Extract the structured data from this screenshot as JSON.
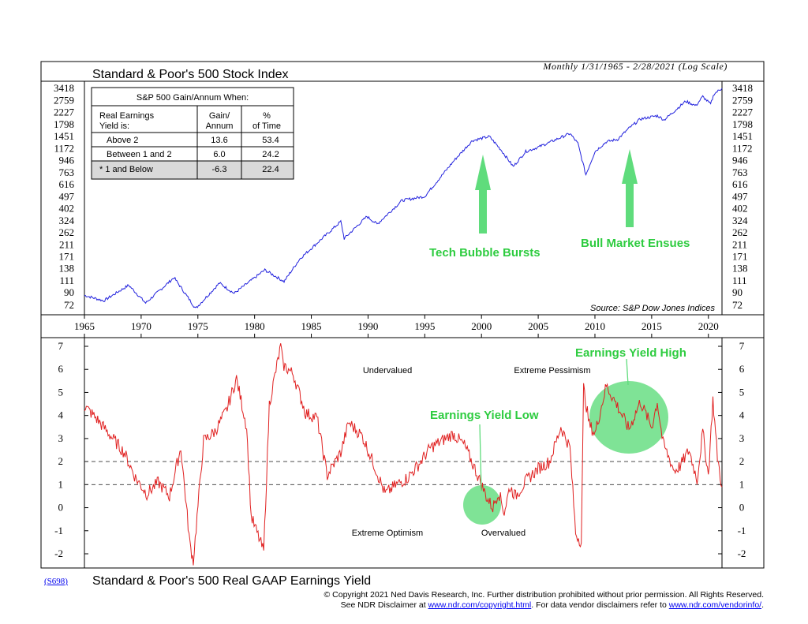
{
  "top_panel": {
    "title": "Standard & Poor's 500 Stock Index",
    "subtitle": "Monthly 1/31/1965 - 2/28/2021 (Log Scale)",
    "source": "Source: S&P Dow Jones Indices",
    "y_ticks": [
      "3418",
      "2759",
      "2227",
      "1798",
      "1451",
      "1172",
      "946",
      "763",
      "616",
      "497",
      "402",
      "324",
      "262",
      "211",
      "171",
      "138",
      "111",
      "90",
      "72"
    ],
    "annotation_1": "Tech Bubble Bursts",
    "annotation_2": "Bull Market Ensues"
  },
  "table": {
    "title": "S&P 500 Gain/Annum When:",
    "col1_header_l1": "Real Earnings",
    "col1_header_l2": "Yield is:",
    "col2_header_l1": "Gain/",
    "col2_header_l2": "Annum",
    "col3_header_l1": "%",
    "col3_header_l2": "of Time",
    "rows": [
      {
        "label": "Above 2",
        "gain": "13.6",
        "pct": "53.4"
      },
      {
        "label": "Between 1 and 2",
        "gain": "6.0",
        "pct": "24.2"
      },
      {
        "label": "* 1 and Below",
        "gain": "-6.3",
        "pct": "22.4"
      }
    ]
  },
  "x_ticks": [
    "1965",
    "1970",
    "1975",
    "1980",
    "1985",
    "1990",
    "1995",
    "2000",
    "2005",
    "2010",
    "2015",
    "2020"
  ],
  "bottom_panel": {
    "title": "Standard & Poor's 500 Real GAAP Earnings Yield",
    "y_ticks": [
      "7",
      "6",
      "5",
      "4",
      "3",
      "2",
      "1",
      "0",
      "-1",
      "-2"
    ],
    "label_undervalued": "Undervalued",
    "label_extreme_pessimism": "Extreme Pessimism",
    "label_extreme_optimism": "Extreme Optimism",
    "label_overvalued": "Overvalued",
    "annotation_low": "Earnings Yield Low",
    "annotation_high": "Earnings Yield High"
  },
  "code": "(S698)",
  "footer": {
    "line1": "© Copyright 2021 Ned Davis Research, Inc.  Further distribution prohibited without prior permission.  All Rights Reserved.",
    "line2_a": "See NDR Disclaimer at ",
    "link1": "www.ndr.com/copyright.html",
    "line2_b": ". For data vendor disclaimers refer to ",
    "link2": "www.ndr.com/vendorinfo/",
    "line2_c": "."
  },
  "colors": {
    "sp500_line": "#2222dd",
    "yield_line": "#e02020",
    "annotation": "#2ecc40",
    "highlight": "#5fdc7c"
  },
  "chart_data": [
    {
      "type": "line",
      "title": "Standard & Poor's 500 Stock Index",
      "subtitle": "Monthly 1/31/1965 - 2/28/2021 (Log Scale)",
      "y_scale": "log",
      "ylim": [
        72,
        3418
      ],
      "xlim": [
        1965,
        2021.2
      ],
      "series": [
        {
          "color": "#2222dd",
          "x": [
            1965.0,
            1966.7,
            1968.9,
            1970.4,
            1972.9,
            1974.8,
            1976.9,
            1978.2,
            1980.9,
            1982.6,
            1984.0,
            1987.6,
            1987.9,
            1989.9,
            1990.8,
            1993.0,
            1995.0,
            1997.6,
            1999.2,
            2000.7,
            2001.7,
            2002.8,
            2003.9,
            2005.0,
            2007.8,
            2008.5,
            2009.2,
            2010.0,
            2011.0,
            2012.0,
            2013.0,
            2014.0,
            2015.5,
            2016.1,
            2017.0,
            2018.0,
            2018.9,
            2019.5,
            2020.2,
            2020.5,
            2021.2
          ],
          "values": [
            86,
            78,
            103,
            75,
            118,
            68,
            107,
            89,
            135,
            110,
            165,
            320,
            236,
            350,
            305,
            465,
            500,
            950,
            1350,
            1450,
            1150,
            850,
            1111,
            1200,
            1530,
            1280,
            735,
            1110,
            1320,
            1380,
            1680,
            1980,
            2100,
            1950,
            2280,
            2720,
            2510,
            2950,
            2580,
            3100,
            3420
          ]
        }
      ]
    },
    {
      "type": "line",
      "title": "Standard & Poor's 500 Real GAAP Earnings Yield",
      "ylim": [
        -2,
        7
      ],
      "xlim": [
        1965,
        2021.2
      ],
      "reference_lines": [
        2,
        1
      ],
      "series": [
        {
          "color": "#e02020",
          "x": [
            1965.0,
            1966.0,
            1967.0,
            1968.5,
            1969.5,
            1970.5,
            1971.5,
            1972.5,
            1973.5,
            1974.3,
            1974.6,
            1975.5,
            1976.5,
            1977.5,
            1978.4,
            1979.3,
            1979.7,
            1980.3,
            1980.8,
            1981.3,
            1982.3,
            1982.5,
            1983.4,
            1984.5,
            1985.5,
            1986.4,
            1987.6,
            1988.3,
            1989.5,
            1990.5,
            1991.5,
            1992.5,
            1993.5,
            1994.5,
            1995.5,
            1996.5,
            1997.5,
            1998.5,
            1999.5,
            2000.0,
            2000.5,
            2001.0,
            2001.5,
            2002.0,
            2002.5,
            2003.0,
            2004.0,
            2005.0,
            2006.0,
            2007.0,
            2007.8,
            2008.3,
            2008.8,
            2009.0,
            2009.5,
            2010.0,
            2011.0,
            2012.0,
            2013.0,
            2014.0,
            2015.0,
            2015.5,
            2016.0,
            2017.0,
            2017.5,
            2018.3,
            2019.0,
            2019.5,
            2020.0,
            2020.4,
            2020.8,
            2021.2
          ],
          "values": [
            4.4,
            3.9,
            3.3,
            2.4,
            1.3,
            0.6,
            1.1,
            0.5,
            2.6,
            -1.6,
            -2.3,
            2.9,
            3.3,
            4.2,
            5.6,
            3.5,
            -0.4,
            -1.2,
            -1.9,
            4.5,
            7.0,
            6.2,
            5.8,
            4.1,
            3.9,
            1.4,
            2.4,
            3.7,
            3.1,
            1.9,
            0.6,
            1.0,
            1.3,
            1.9,
            2.6,
            2.9,
            3.2,
            2.7,
            1.6,
            1.0,
            0.4,
            0.0,
            0.7,
            -0.2,
            0.9,
            0.5,
            1.2,
            1.7,
            2.0,
            3.5,
            2.6,
            -1.1,
            -1.5,
            5.2,
            3.6,
            3.2,
            5.3,
            4.4,
            3.4,
            4.6,
            3.5,
            4.6,
            2.8,
            1.6,
            1.8,
            2.5,
            1.2,
            3.3,
            1.4,
            4.7,
            2.2,
            0.9
          ]
        }
      ]
    }
  ]
}
